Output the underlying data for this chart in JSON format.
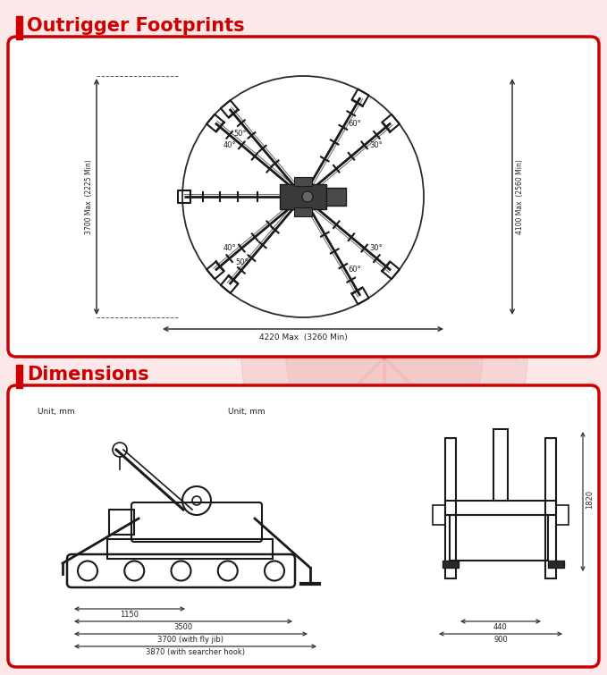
{
  "bg_color": "#fce8e8",
  "box_color": "#ffffff",
  "box_edge_color": "#cc0000",
  "title_color": "#cc0000",
  "bar_color": "#cc0000",
  "text_color": "#222222",
  "title1": "Outrigger Footprints",
  "title2": "Dimensions",
  "dim_left": "3700 Max  (2225 Min)",
  "dim_right": "4100 Max  (2560 Min)",
  "dim_bottom": "4220 Max  (3260 Min)",
  "unit_label": "Unit, mm",
  "dim_1150": "1150",
  "dim_3500": "3500",
  "dim_3700": "3700 (with fly jib)",
  "dim_3870": "3870 (with searcher hook)",
  "dim_440": "440",
  "dim_900": "900",
  "dim_1820": "1820",
  "figw": 6.79,
  "figh": 7.55,
  "dpi": 100
}
